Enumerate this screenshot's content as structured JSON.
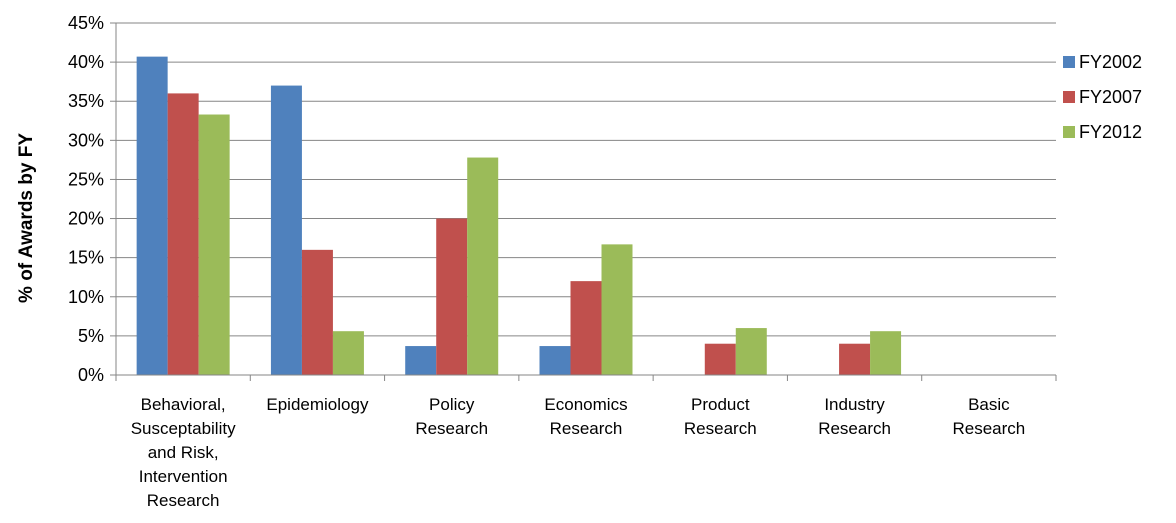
{
  "chart_data": {
    "type": "bar",
    "title": "",
    "xlabel": "",
    "ylabel": "% of Awards by FY",
    "ylim": [
      0,
      45
    ],
    "y_ticks": [
      "0%",
      "5%",
      "10%",
      "15%",
      "20%",
      "25%",
      "30%",
      "35%",
      "40%",
      "45%"
    ],
    "grid": true,
    "legend_position": "right",
    "categories": [
      [
        "Behavioral,",
        "Susceptability",
        "and Risk,",
        "Intervention",
        "Research"
      ],
      [
        "Epidemiology"
      ],
      [
        "Policy",
        "Research"
      ],
      [
        "Economics",
        "Research"
      ],
      [
        "Product",
        "Research"
      ],
      [
        "Industry",
        "Research"
      ],
      [
        "Basic",
        "Research"
      ]
    ],
    "series": [
      {
        "name": "FY2002",
        "color": "#4F81BD",
        "values": [
          40.7,
          37.0,
          3.7,
          3.7,
          0,
          0,
          0
        ]
      },
      {
        "name": "FY2007",
        "color": "#C0504D",
        "values": [
          36.0,
          16.0,
          20.0,
          12.0,
          4.0,
          4.0,
          0
        ]
      },
      {
        "name": "FY2012",
        "color": "#9BBB59",
        "values": [
          33.3,
          5.6,
          27.8,
          16.7,
          6.0,
          5.6,
          0
        ]
      }
    ]
  }
}
